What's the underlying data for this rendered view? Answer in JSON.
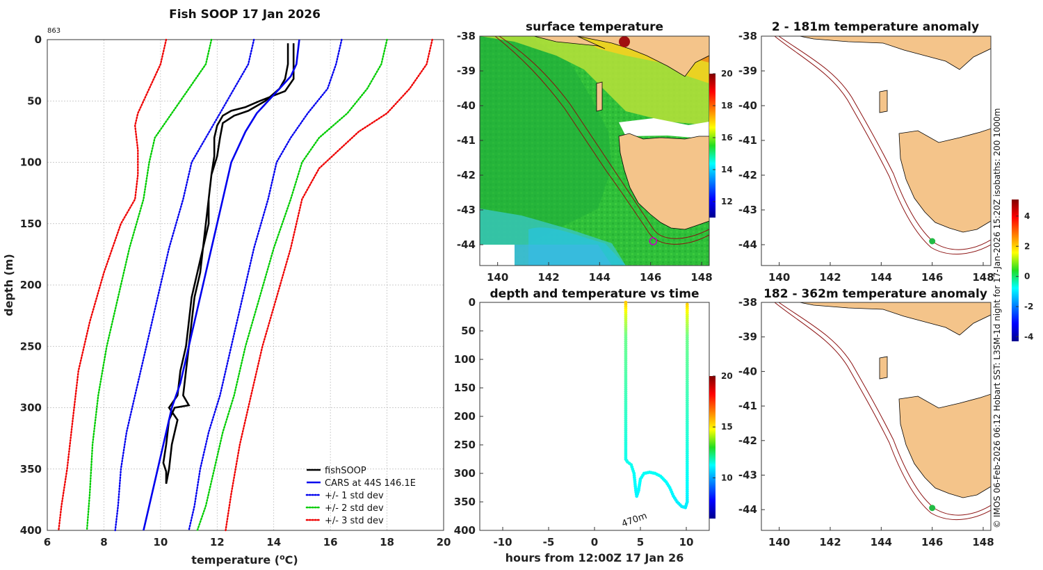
{
  "profile": {
    "title": "Fish SOOP 17 Jan 2026",
    "id_label": "863",
    "xlabel": "temperature (",
    "xlabel_sup": "o",
    "xlabel_end": "C)",
    "ylabel": "depth (m)",
    "xticks": [
      "6",
      "8",
      "10",
      "12",
      "14",
      "16",
      "18",
      "20"
    ],
    "yticks": [
      "0",
      "50",
      "100",
      "150",
      "200",
      "250",
      "300",
      "350",
      "400"
    ],
    "legend": [
      "fishSOOP",
      "CARS at 44S 146.1E",
      "+/- 1 std dev",
      "+/- 2 std dev",
      "+/- 3 std dev"
    ]
  },
  "chart_data": [
    {
      "type": "line",
      "title": "Fish SOOP 17 Jan 2026",
      "xlabel": "temperature (oC)",
      "ylabel": "depth (m)",
      "xlim": [
        6,
        20
      ],
      "ylim": [
        400,
        0
      ],
      "series": [
        {
          "name": "fishSOOP",
          "color": "#000000",
          "style": "solid",
          "points": [
            [
              14.7,
              3
            ],
            [
              14.7,
              20
            ],
            [
              14.7,
              32
            ],
            [
              14.4,
              42
            ],
            [
              13.5,
              50
            ],
            [
              13.0,
              55
            ],
            [
              12.5,
              58
            ],
            [
              12.2,
              62
            ],
            [
              12.0,
              70
            ],
            [
              11.9,
              80
            ],
            [
              11.9,
              95
            ],
            [
              11.8,
              110
            ],
            [
              11.7,
              130
            ],
            [
              11.7,
              150
            ],
            [
              11.5,
              170
            ],
            [
              11.4,
              190
            ],
            [
              11.2,
              210
            ],
            [
              11.1,
              230
            ],
            [
              11.0,
              250
            ],
            [
              10.9,
              270
            ],
            [
              10.8,
              290
            ],
            [
              11.0,
              298
            ],
            [
              10.5,
              300
            ],
            [
              10.3,
              310
            ],
            [
              10.2,
              330
            ],
            [
              10.1,
              345
            ],
            [
              10.2,
              352
            ],
            [
              10.2,
              362
            ],
            [
              10.3,
              350
            ],
            [
              10.4,
              330
            ],
            [
              10.6,
              310
            ],
            [
              10.3,
              300
            ],
            [
              10.6,
              290
            ],
            [
              10.7,
              270
            ],
            [
              10.9,
              250
            ],
            [
              11.0,
              230
            ],
            [
              11.1,
              210
            ],
            [
              11.3,
              190
            ],
            [
              11.5,
              170
            ],
            [
              11.6,
              150
            ],
            [
              11.7,
              130
            ],
            [
              11.8,
              110
            ],
            [
              12.0,
              95
            ],
            [
              12.1,
              80
            ],
            [
              12.2,
              68
            ],
            [
              12.6,
              62
            ],
            [
              13.1,
              58
            ],
            [
              13.7,
              50
            ],
            [
              14.2,
              40
            ],
            [
              14.4,
              32
            ],
            [
              14.5,
              20
            ],
            [
              14.5,
              3
            ]
          ]
        },
        {
          "name": "CARS at 44S 146.1E",
          "color": "#0000ee",
          "style": "solid",
          "points": [
            [
              14.9,
              0
            ],
            [
              14.8,
              20
            ],
            [
              14.6,
              30
            ],
            [
              14.2,
              40
            ],
            [
              13.8,
              50
            ],
            [
              13.4,
              60
            ],
            [
              13.0,
              75
            ],
            [
              12.7,
              90
            ],
            [
              12.5,
              100
            ],
            [
              12.2,
              130
            ],
            [
              11.9,
              160
            ],
            [
              11.5,
              200
            ],
            [
              11.1,
              240
            ],
            [
              10.7,
              280
            ],
            [
              10.4,
              300
            ],
            [
              10.2,
              320
            ],
            [
              9.9,
              350
            ],
            [
              9.6,
              380
            ],
            [
              9.4,
              400
            ]
          ]
        },
        {
          "name": "+1 std dev",
          "color": "#0000ee",
          "style": "dotted",
          "points": [
            [
              16.4,
              0
            ],
            [
              16.2,
              20
            ],
            [
              15.9,
              40
            ],
            [
              15.2,
              60
            ],
            [
              14.6,
              80
            ],
            [
              14.1,
              100
            ],
            [
              13.8,
              130
            ],
            [
              13.3,
              170
            ],
            [
              12.9,
              210
            ],
            [
              12.5,
              250
            ],
            [
              12.1,
              290
            ],
            [
              11.7,
              320
            ],
            [
              11.4,
              350
            ],
            [
              11.2,
              380
            ],
            [
              11.0,
              400
            ]
          ]
        },
        {
          "name": "-1 std dev",
          "color": "#0000ee",
          "style": "dotted",
          "points": [
            [
              13.3,
              0
            ],
            [
              13.1,
              20
            ],
            [
              12.6,
              40
            ],
            [
              12.1,
              60
            ],
            [
              11.6,
              80
            ],
            [
              11.1,
              100
            ],
            [
              10.8,
              130
            ],
            [
              10.3,
              170
            ],
            [
              9.9,
              210
            ],
            [
              9.5,
              250
            ],
            [
              9.1,
              290
            ],
            [
              8.8,
              320
            ],
            [
              8.6,
              350
            ],
            [
              8.5,
              380
            ],
            [
              8.4,
              400
            ]
          ]
        },
        {
          "name": "+2 std dev",
          "color": "#00cc00",
          "style": "dotted",
          "points": [
            [
              18.0,
              0
            ],
            [
              17.8,
              20
            ],
            [
              17.3,
              40
            ],
            [
              16.6,
              60
            ],
            [
              15.6,
              80
            ],
            [
              15.0,
              100
            ],
            [
              14.6,
              130
            ],
            [
              14.0,
              170
            ],
            [
              13.5,
              210
            ],
            [
              13.0,
              250
            ],
            [
              12.6,
              290
            ],
            [
              12.2,
              320
            ],
            [
              11.9,
              350
            ],
            [
              11.6,
              380
            ],
            [
              11.3,
              400
            ]
          ]
        },
        {
          "name": "-2 std dev",
          "color": "#00cc00",
          "style": "dotted",
          "points": [
            [
              11.8,
              0
            ],
            [
              11.6,
              20
            ],
            [
              11.0,
              40
            ],
            [
              10.4,
              60
            ],
            [
              9.8,
              80
            ],
            [
              9.6,
              100
            ],
            [
              9.4,
              130
            ],
            [
              8.9,
              170
            ],
            [
              8.5,
              210
            ],
            [
              8.1,
              250
            ],
            [
              7.8,
              290
            ],
            [
              7.6,
              330
            ],
            [
              7.5,
              370
            ],
            [
              7.4,
              400
            ]
          ]
        },
        {
          "name": "+3 std dev",
          "color": "#ee0000",
          "style": "dotted",
          "points": [
            [
              19.6,
              0
            ],
            [
              19.4,
              20
            ],
            [
              18.8,
              40
            ],
            [
              18.0,
              60
            ],
            [
              17.0,
              75
            ],
            [
              16.3,
              90
            ],
            [
              15.6,
              105
            ],
            [
              15.0,
              130
            ],
            [
              14.6,
              170
            ],
            [
              14.1,
              210
            ],
            [
              13.6,
              250
            ],
            [
              13.2,
              290
            ],
            [
              12.8,
              330
            ],
            [
              12.5,
              370
            ],
            [
              12.3,
              400
            ]
          ]
        },
        {
          "name": "-3 std dev",
          "color": "#ee0000",
          "style": "dotted",
          "points": [
            [
              10.2,
              0
            ],
            [
              10.0,
              20
            ],
            [
              9.6,
              40
            ],
            [
              9.2,
              60
            ],
            [
              9.1,
              70
            ],
            [
              9.2,
              90
            ],
            [
              9.2,
              110
            ],
            [
              9.1,
              130
            ],
            [
              8.6,
              150
            ],
            [
              8.0,
              190
            ],
            [
              7.5,
              230
            ],
            [
              7.1,
              270
            ],
            [
              6.9,
              310
            ],
            [
              6.7,
              350
            ],
            [
              6.5,
              380
            ],
            [
              6.4,
              400
            ]
          ]
        }
      ]
    },
    {
      "type": "heatmap",
      "title": "surface temperature",
      "xlim": [
        139.3,
        148.3
      ],
      "ylim": [
        -44.6,
        -38
      ],
      "xticks": [
        "140",
        "142",
        "144",
        "146",
        "148"
      ],
      "yticks": [
        "-38",
        "-39",
        "-40",
        "-41",
        "-42",
        "-43",
        "-44"
      ],
      "colorbar": {
        "min": 11,
        "max": 20,
        "ticks": [
          "12",
          "14",
          "16",
          "18",
          "20"
        ]
      },
      "marker": {
        "lon": 146.1,
        "lat": -43.9,
        "color": "#c000c0"
      }
    },
    {
      "type": "scatter",
      "title": "depth and temperature vs time",
      "xlabel": "hours from 12:00Z 17 Jan 26",
      "xlim": [
        -12.5,
        12.5
      ],
      "ylim": [
        400,
        0
      ],
      "xticks": [
        "-10",
        "-5",
        "0",
        "5",
        "10"
      ],
      "yticks": [
        "0",
        "50",
        "100",
        "150",
        "200",
        "250",
        "300",
        "350",
        "400"
      ],
      "colorbar": {
        "min": 6,
        "max": 20,
        "ticks": [
          "10",
          "15",
          "20"
        ]
      },
      "annotation": "470m",
      "track": [
        [
          3.4,
          0
        ],
        [
          3.4,
          50
        ],
        [
          3.4,
          120
        ],
        [
          3.4,
          200
        ],
        [
          3.4,
          275
        ],
        [
          3.6,
          280
        ],
        [
          4.0,
          285
        ],
        [
          4.3,
          300
        ],
        [
          4.5,
          330
        ],
        [
          4.6,
          340
        ],
        [
          4.8,
          330
        ],
        [
          5.0,
          310
        ],
        [
          5.4,
          300
        ],
        [
          6.0,
          298
        ],
        [
          6.6,
          300
        ],
        [
          7.2,
          305
        ],
        [
          7.8,
          315
        ],
        [
          8.2,
          325
        ],
        [
          8.6,
          340
        ],
        [
          9.0,
          350
        ],
        [
          9.5,
          358
        ],
        [
          9.9,
          360
        ],
        [
          10.1,
          350
        ],
        [
          10.1,
          250
        ],
        [
          10.1,
          150
        ],
        [
          10.1,
          50
        ],
        [
          10.1,
          0
        ]
      ]
    },
    {
      "type": "heatmap",
      "title": "2 - 181m temperature anomaly",
      "xlim": [
        139.3,
        148.3
      ],
      "ylim": [
        -44.6,
        -38
      ],
      "xticks": [
        "140",
        "142",
        "144",
        "146",
        "148"
      ],
      "yticks": [
        "-38",
        "-39",
        "-40",
        "-41",
        "-42",
        "-43",
        "-44"
      ],
      "colorbar": {
        "min": -4.3,
        "max": 5.1,
        "ticks": [
          "-4",
          "-2",
          "0",
          "2",
          "4"
        ]
      },
      "marker": {
        "lon": 146.0,
        "lat": -43.9,
        "color": "#22bb44"
      }
    },
    {
      "type": "heatmap",
      "title": "182 - 362m temperature anomaly",
      "xlim": [
        139.3,
        148.3
      ],
      "ylim": [
        -44.6,
        -38
      ],
      "xticks": [
        "140",
        "142",
        "144",
        "146",
        "148"
      ],
      "yticks": [
        "-38",
        "-39",
        "-40",
        "-41",
        "-42",
        "-43",
        "-44"
      ],
      "marker": {
        "lon": 146.0,
        "lat": -43.95,
        "color": "#22bb44"
      }
    }
  ],
  "credit": "© IMOS 06-Feb-2026 06:12 Hobart SST: L3SM-1d night for 17-Jan-2026 15:20Z isobaths: 200  1000m"
}
